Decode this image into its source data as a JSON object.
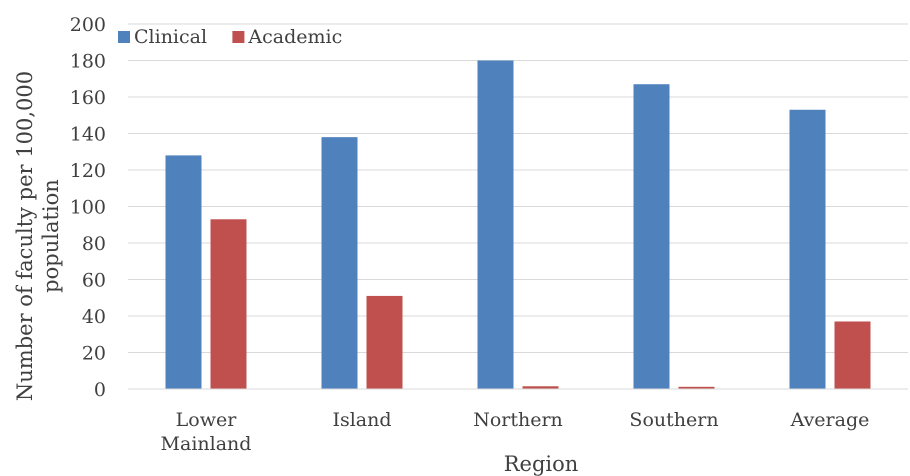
{
  "chart_data": {
    "type": "bar",
    "categories": [
      [
        "Lower",
        "Mainland"
      ],
      [
        "Island"
      ],
      [
        "Northern"
      ],
      [
        "Southern"
      ],
      [
        "Average"
      ]
    ],
    "series": [
      {
        "name": "Clinical",
        "color": "#4F81BD",
        "values": [
          128,
          138,
          180,
          167,
          153
        ]
      },
      {
        "name": "Academic",
        "color": "#C0504D",
        "values": [
          93,
          51,
          1.5,
          1.2,
          37
        ]
      }
    ],
    "xlabel": "Region",
    "ylabel": [
      "Number of faculty per 100,000",
      "population"
    ],
    "ylim": [
      0,
      200
    ],
    "yticks": [
      0,
      20,
      40,
      60,
      80,
      100,
      120,
      140,
      160,
      180,
      200
    ],
    "grid": true,
    "legend_position": "top-left"
  }
}
